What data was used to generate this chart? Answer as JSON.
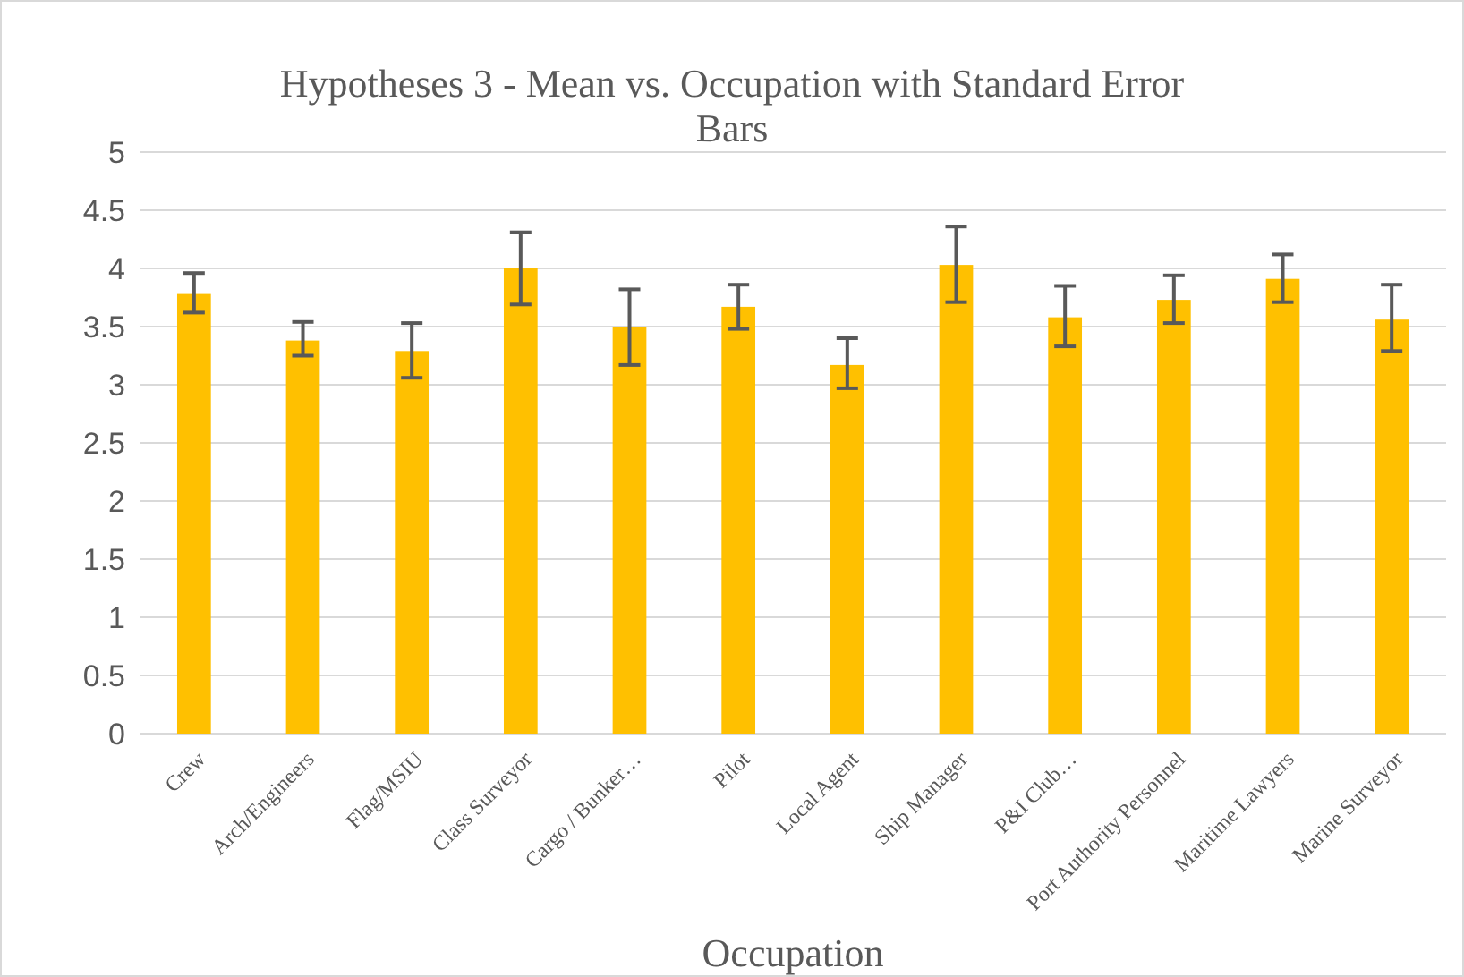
{
  "chart_data": {
    "type": "bar",
    "title": "Hypotheses 3 - Mean vs. Occupation with Standard Error Bars",
    "xlabel": "Occupation",
    "categories": [
      "Crew",
      "Arch/Engineers",
      "Flag/MSIU",
      "Class Surveyor",
      "Cargo / Bunker…",
      "Pilot",
      "Local Agent",
      "Ship Manager",
      "P&I Club…",
      "Port Authority Personnel",
      "Maritime Lawyers",
      "Marine Surveyor"
    ],
    "values": [
      3.78,
      3.38,
      3.29,
      4.0,
      3.5,
      3.67,
      3.17,
      4.03,
      3.58,
      3.73,
      3.91,
      3.56
    ],
    "errors": [
      [
        3.62,
        3.96
      ],
      [
        3.25,
        3.54
      ],
      [
        3.06,
        3.53
      ],
      [
        3.69,
        4.31
      ],
      [
        3.17,
        3.82
      ],
      [
        3.48,
        3.86
      ],
      [
        2.97,
        3.4
      ],
      [
        3.71,
        4.36
      ],
      [
        3.33,
        3.85
      ],
      [
        3.53,
        3.94
      ],
      [
        3.71,
        4.12
      ],
      [
        3.29,
        3.86
      ]
    ],
    "color": "#ffc000",
    "ylim": [
      0,
      5
    ],
    "yticks": [
      0,
      0.5,
      1,
      1.5,
      2,
      2.5,
      3,
      3.5,
      4,
      4.5,
      5
    ],
    "grid": "y"
  }
}
